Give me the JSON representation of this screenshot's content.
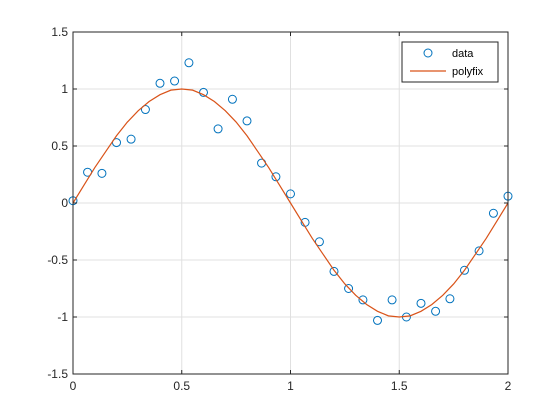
{
  "chart_data": {
    "type": "line",
    "title": "",
    "xlabel": "",
    "ylabel": "",
    "xlim": [
      0,
      2
    ],
    "ylim": [
      -1.5,
      1.5
    ],
    "xticks": [
      0,
      0.5,
      1,
      1.5,
      2
    ],
    "yticks": [
      -1.5,
      -1,
      -0.5,
      0,
      0.5,
      1,
      1.5
    ],
    "xtick_labels": [
      "0",
      "0.5",
      "1",
      "1.5",
      "2"
    ],
    "ytick_labels": [
      "-1.5",
      "-1",
      "-0.5",
      "0",
      "0.5",
      "1",
      "1.5"
    ],
    "grid": true,
    "legend_position": "top-right",
    "series": [
      {
        "name": "data",
        "kind": "scatter",
        "marker": "circle-open",
        "color": "#0072BD",
        "points": [
          [
            0.0,
            0.02
          ],
          [
            0.067,
            0.27
          ],
          [
            0.133,
            0.26
          ],
          [
            0.2,
            0.53
          ],
          [
            0.267,
            0.56
          ],
          [
            0.333,
            0.82
          ],
          [
            0.4,
            1.05
          ],
          [
            0.467,
            1.07
          ],
          [
            0.533,
            1.23
          ],
          [
            0.6,
            0.97
          ],
          [
            0.667,
            0.65
          ],
          [
            0.733,
            0.91
          ],
          [
            0.8,
            0.72
          ],
          [
            0.867,
            0.35
          ],
          [
            0.933,
            0.23
          ],
          [
            1.0,
            0.08
          ],
          [
            1.067,
            -0.17
          ],
          [
            1.133,
            -0.34
          ],
          [
            1.2,
            -0.6
          ],
          [
            1.267,
            -0.75
          ],
          [
            1.333,
            -0.85
          ],
          [
            1.4,
            -1.03
          ],
          [
            1.467,
            -0.85
          ],
          [
            1.533,
            -1.0
          ],
          [
            1.6,
            -0.88
          ],
          [
            1.667,
            -0.95
          ],
          [
            1.733,
            -0.84
          ],
          [
            1.8,
            -0.59
          ],
          [
            1.867,
            -0.42
          ],
          [
            1.933,
            -0.09
          ],
          [
            2.0,
            0.06
          ]
        ]
      },
      {
        "name": "polyfix",
        "kind": "line",
        "color": "#D95319",
        "points": [
          [
            0.0,
            0.0
          ],
          [
            0.05,
            0.155
          ],
          [
            0.1,
            0.31
          ],
          [
            0.15,
            0.45
          ],
          [
            0.2,
            0.59
          ],
          [
            0.25,
            0.71
          ],
          [
            0.3,
            0.81
          ],
          [
            0.35,
            0.89
          ],
          [
            0.4,
            0.95
          ],
          [
            0.45,
            0.99
          ],
          [
            0.5,
            1.0
          ],
          [
            0.55,
            0.99
          ],
          [
            0.6,
            0.95
          ],
          [
            0.65,
            0.89
          ],
          [
            0.7,
            0.81
          ],
          [
            0.75,
            0.71
          ],
          [
            0.8,
            0.59
          ],
          [
            0.85,
            0.45
          ],
          [
            0.9,
            0.31
          ],
          [
            0.95,
            0.155
          ],
          [
            1.0,
            0.0
          ],
          [
            1.05,
            -0.155
          ],
          [
            1.1,
            -0.31
          ],
          [
            1.15,
            -0.45
          ],
          [
            1.2,
            -0.59
          ],
          [
            1.25,
            -0.71
          ],
          [
            1.3,
            -0.81
          ],
          [
            1.35,
            -0.89
          ],
          [
            1.4,
            -0.95
          ],
          [
            1.45,
            -0.99
          ],
          [
            1.5,
            -1.0
          ],
          [
            1.55,
            -0.99
          ],
          [
            1.6,
            -0.95
          ],
          [
            1.65,
            -0.89
          ],
          [
            1.7,
            -0.81
          ],
          [
            1.75,
            -0.71
          ],
          [
            1.8,
            -0.59
          ],
          [
            1.85,
            -0.45
          ],
          [
            1.9,
            -0.31
          ],
          [
            1.95,
            -0.155
          ],
          [
            2.0,
            0.0
          ]
        ]
      }
    ]
  },
  "style": {
    "axis_color": "#262626",
    "grid_color": "#e0e0e0",
    "background": "#ffffff"
  }
}
